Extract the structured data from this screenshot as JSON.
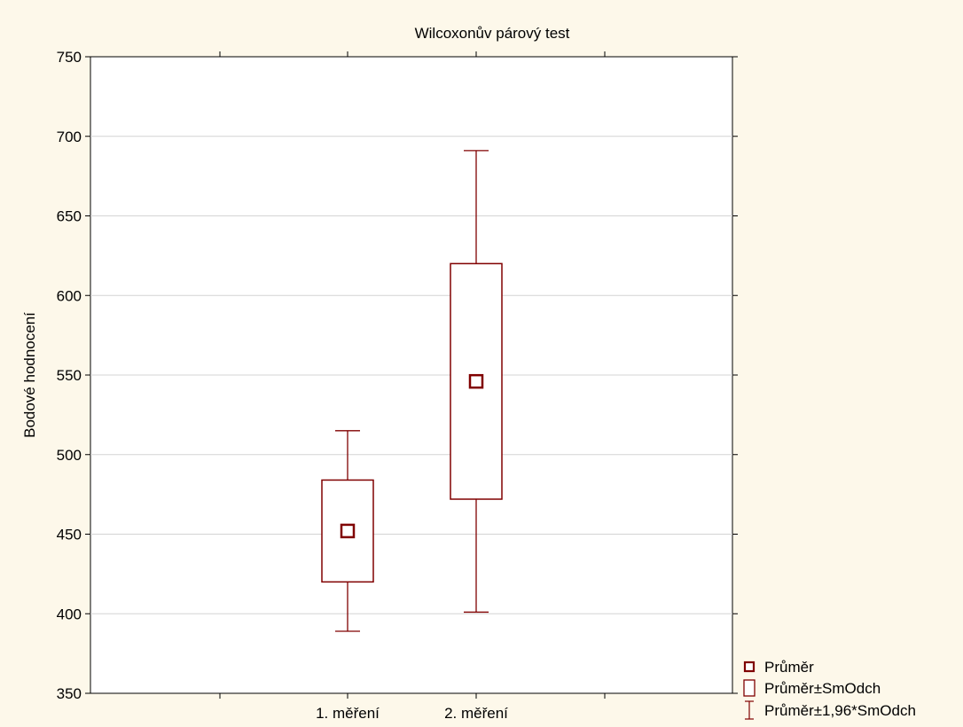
{
  "chart_data": {
    "type": "box",
    "title": "Wilcoxonův párový test",
    "xlabel": "",
    "ylabel": "Bodové hodnocení",
    "ylim": [
      350,
      750
    ],
    "yticks": [
      "350",
      "400",
      "450",
      "500",
      "550",
      "600",
      "650",
      "700",
      "750"
    ],
    "categories": [
      "1. měření",
      "2. měření"
    ],
    "series": [
      {
        "category": "1. měření",
        "mean": 452,
        "sd_low": 420,
        "sd_high": 484,
        "ci_low": 389,
        "ci_high": 515
      },
      {
        "category": "2. měření",
        "mean": 546,
        "sd_low": 472,
        "sd_high": 620,
        "ci_low": 401,
        "ci_high": 691
      }
    ],
    "grid": true,
    "legend_position": "bottom-right",
    "legend": [
      {
        "marker": "mean",
        "label": "Průměr"
      },
      {
        "marker": "box",
        "label": "Průměr±SmOdch"
      },
      {
        "marker": "whisker",
        "label": "Průměr±1,96*SmOdch"
      }
    ],
    "colors": {
      "series": "#800000",
      "grid": "#d4d4d4",
      "plot_bg": "#ffffff",
      "page_bg": "#fdf8ea"
    }
  }
}
